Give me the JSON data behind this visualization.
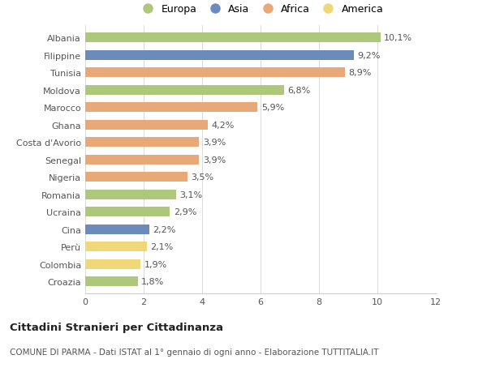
{
  "countries": [
    "Albania",
    "Filippine",
    "Tunisia",
    "Moldova",
    "Marocco",
    "Ghana",
    "Costa d'Avorio",
    "Senegal",
    "Nigeria",
    "Romania",
    "Ucraina",
    "Cina",
    "Perù",
    "Colombia",
    "Croazia"
  ],
  "values": [
    10.1,
    9.2,
    8.9,
    6.8,
    5.9,
    4.2,
    3.9,
    3.9,
    3.5,
    3.1,
    2.9,
    2.2,
    2.1,
    1.9,
    1.8
  ],
  "labels": [
    "10,1%",
    "9,2%",
    "8,9%",
    "6,8%",
    "5,9%",
    "4,2%",
    "3,9%",
    "3,9%",
    "3,5%",
    "3,1%",
    "2,9%",
    "2,2%",
    "2,1%",
    "1,9%",
    "1,8%"
  ],
  "continents": [
    "Europa",
    "Asia",
    "Africa",
    "Europa",
    "Africa",
    "Africa",
    "Africa",
    "Africa",
    "Africa",
    "Europa",
    "Europa",
    "Asia",
    "America",
    "America",
    "Europa"
  ],
  "continent_colors": {
    "Europa": "#adc87a",
    "Asia": "#6b8cba",
    "Africa": "#e8a878",
    "America": "#f0d878"
  },
  "legend_order": [
    "Europa",
    "Asia",
    "Africa",
    "America"
  ],
  "xlim": [
    0,
    12
  ],
  "xticks": [
    0,
    2,
    4,
    6,
    8,
    10,
    12
  ],
  "title": "Cittadini Stranieri per Cittadinanza",
  "subtitle": "COMUNE DI PARMA - Dati ISTAT al 1° gennaio di ogni anno - Elaborazione TUTTITALIA.IT",
  "background_color": "#ffffff",
  "grid_color": "#dddddd",
  "bar_height": 0.55,
  "label_fontsize": 8,
  "ytick_fontsize": 8,
  "xtick_fontsize": 8
}
